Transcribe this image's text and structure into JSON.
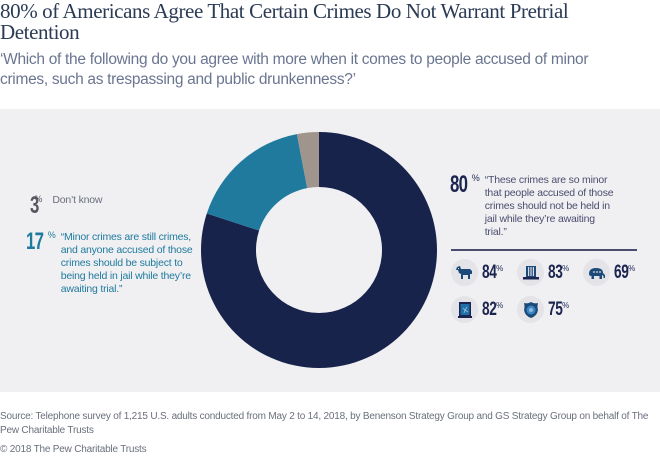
{
  "header": {
    "title": "80% of Americans Agree That Certain Crimes Do Not Warrant Pretrial Detention",
    "subtitle": "‘Which of the following do you agree with more when it comes to people accused of minor crimes, such as trespassing and public drunkenness?’"
  },
  "chart_data": {
    "type": "pie",
    "variant": "donut",
    "title": "80% of Americans Agree That Certain Crimes Do Not Warrant Pretrial Detention",
    "subtitle": "Which of the following do you agree with more when it comes to people accused of minor crimes, such as trespassing and public drunkenness?",
    "start": "12 o'clock, clockwise",
    "slices": [
      {
        "name": "not-held",
        "value": 80,
        "value_label": "80",
        "unit": "%",
        "label": "“These crimes are so minor that people accused of those crimes should not be held in jail while they’re awaiting trial.”",
        "color": "#17234b"
      },
      {
        "name": "held",
        "value": 17,
        "value_label": "17",
        "unit": "%",
        "label": "“Minor crimes are still crimes, and anyone accused of those crimes should be subject to being held in jail while they’re awaiting trial.”",
        "color": "#1f7a9e"
      },
      {
        "name": "dont-know",
        "value": 3,
        "value_label": "3",
        "unit": "%",
        "label": "Don’t know",
        "color": "#a0958d"
      }
    ],
    "subgroups": [
      {
        "icon": "donkey-icon",
        "group": "Democrats",
        "value": 84,
        "value_label": "84",
        "unit": "%"
      },
      {
        "icon": "top-hat-icon",
        "group": "Independents",
        "value": 83,
        "value_label": "83",
        "unit": "%"
      },
      {
        "icon": "elephant-icon",
        "group": "Republicans",
        "value": 69,
        "value_label": "69",
        "unit": "%"
      },
      {
        "icon": "broken-window-icon",
        "group": "Crime victims",
        "value": 82,
        "value_label": "82",
        "unit": "%"
      },
      {
        "icon": "police-badge-icon",
        "group": "Law enforcement households",
        "value": 75,
        "value_label": "75",
        "unit": "%"
      }
    ]
  },
  "colors": {
    "navy": "#17234b",
    "teal": "#1f7a9e",
    "grey": "#a0958d",
    "panel": "#f0f0f2"
  },
  "footer": {
    "source": "Source: Telephone survey of 1,215 U.S. adults conducted from May 2 to 14, 2018, by Benenson Strategy Group and GS Strategy Group on behalf of The Pew Charitable Trusts",
    "copyright": "© 2018 The Pew Charitable Trusts"
  }
}
